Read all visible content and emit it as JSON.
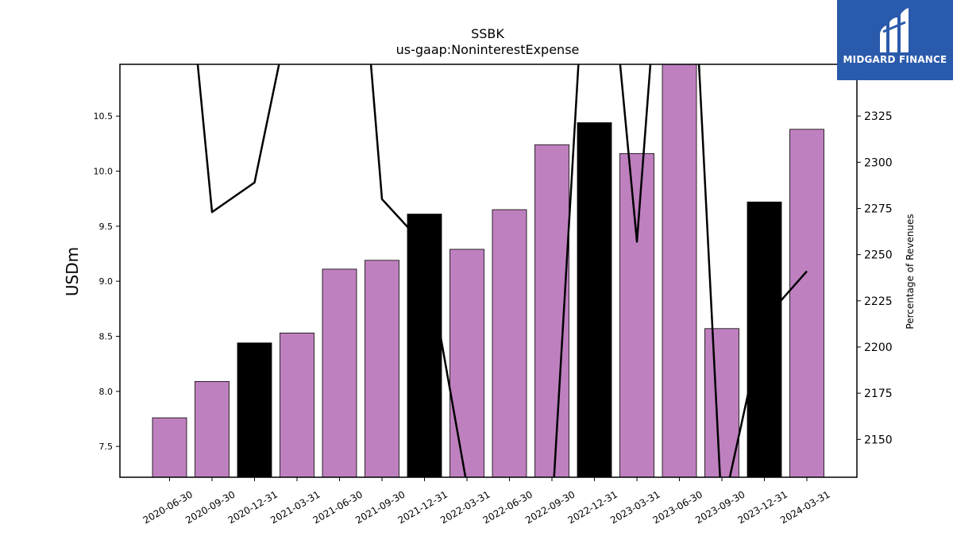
{
  "chart_data": {
    "type": "bar",
    "title": "SSBK",
    "subtitle": "us-gaap:NoninterestExpense",
    "ylabel": "USDm",
    "y2label": "Percentage of Revenues",
    "categories": [
      "2020-06-30",
      "2020-09-30",
      "2020-12-31",
      "2021-03-31",
      "2021-06-30",
      "2021-09-30",
      "2021-12-31",
      "2022-03-31",
      "2022-06-30",
      "2022-09-30",
      "2022-12-31",
      "2023-03-31",
      "2023-06-30",
      "2023-09-30",
      "2023-12-31",
      "2024-03-31"
    ],
    "series": [
      {
        "values": [
          7.76,
          8.09,
          8.44,
          8.53,
          9.11,
          9.19,
          9.61,
          9.29,
          9.65,
          10.24,
          10.44,
          10.16,
          10.98,
          8.57,
          9.72,
          10.38
        ],
        "highlight": [
          false,
          false,
          true,
          false,
          false,
          false,
          true,
          false,
          false,
          false,
          true,
          false,
          false,
          false,
          true,
          false
        ]
      },
      {
        "axis": "right",
        "type": "line",
        "values": [
          2510,
          2273,
          2289,
          2400,
          2560,
          2280,
          2255,
          2125,
          null,
          2110,
          2500,
          2257,
          2560,
          2110,
          2215,
          2241
        ]
      }
    ],
    "ylim": [
      7.22,
      10.97
    ],
    "yticks": [
      7.5,
      8.0,
      8.5,
      9.0,
      9.5,
      10.0,
      10.5
    ],
    "y2lim": [
      2129.5,
      2353
    ],
    "y2ticks": [
      2150,
      2175,
      2200,
      2225,
      2250,
      2275,
      2300,
      2325
    ],
    "colors": {
      "bar": "#bf80bf",
      "highlight": "#000000",
      "line": "#000000"
    },
    "grid": false,
    "legend": "none"
  },
  "logo": {
    "text": "MIDGARD FINANCE"
  }
}
